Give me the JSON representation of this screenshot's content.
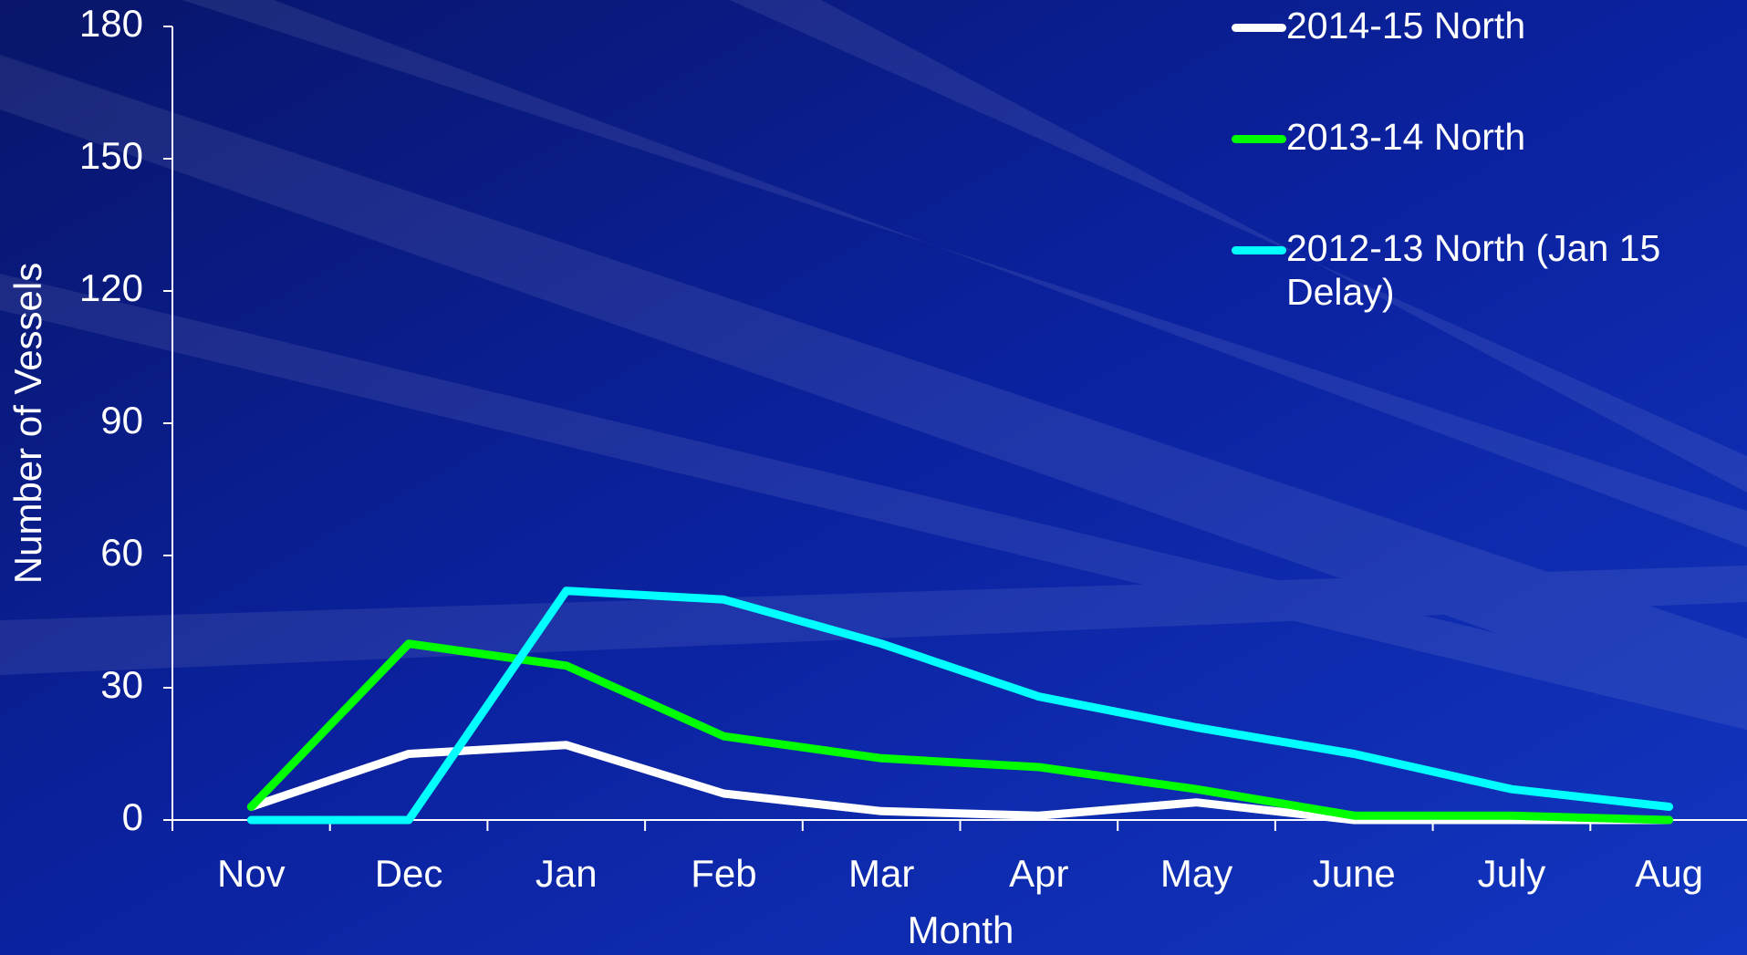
{
  "chart_data": {
    "type": "line",
    "x_label": "Month",
    "y_label": "Number of Vessels",
    "categories": [
      "Nov",
      "Dec",
      "Jan",
      "Feb",
      "Mar",
      "Apr",
      "May",
      "June",
      "July",
      "Aug"
    ],
    "series": [
      {
        "name": "2014-15 North",
        "color": "#ffffff",
        "values": [
          3,
          15,
          17,
          6,
          2,
          1,
          4,
          0,
          0,
          0
        ]
      },
      {
        "name": "2013-14 North",
        "color": "#00ff00",
        "values": [
          3,
          40,
          35,
          19,
          14,
          12,
          7,
          1,
          1,
          0
        ]
      },
      {
        "name": "2012-13 North (Jan 15 Delay)",
        "color": "#00ffff",
        "values": [
          0,
          0,
          52,
          50,
          40,
          28,
          21,
          15,
          7,
          3
        ]
      }
    ],
    "ylim": [
      0,
      180
    ],
    "yticks": [
      0,
      30,
      60,
      90,
      120,
      150,
      180
    ]
  }
}
